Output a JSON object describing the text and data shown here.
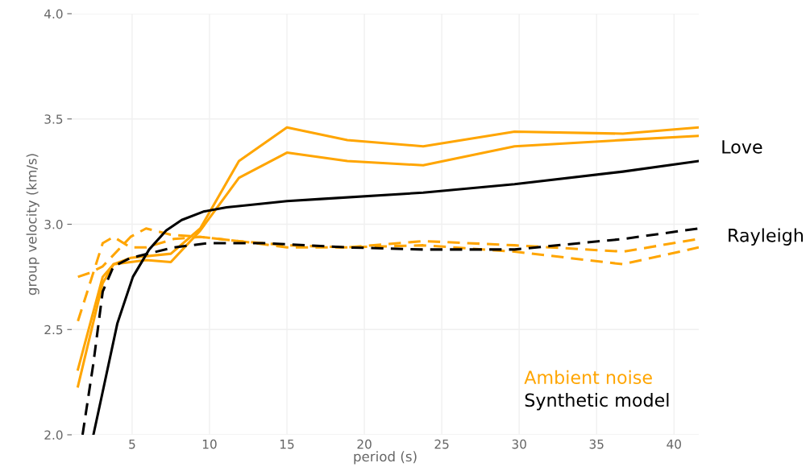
{
  "chart_data": {
    "type": "line",
    "xlabel": "period (s)",
    "ylabel": "group velocity (km/s)",
    "xlim": [
      1.1,
      41.6
    ],
    "ylim": [
      2.0,
      4.0
    ],
    "xticks": [
      5,
      10,
      15,
      20,
      25,
      30,
      35,
      40
    ],
    "yticks": [
      {
        "value": 2.0,
        "label": "2.0"
      },
      {
        "value": 2.5,
        "label": "2.5"
      },
      {
        "value": 3.0,
        "label": "3.0"
      },
      {
        "value": 3.5,
        "label": "3.5"
      },
      {
        "value": 4.0,
        "label": "4.0"
      }
    ],
    "grid": true,
    "legend": "bottom right",
    "marker": "none",
    "series": [
      {
        "name": "Ambient noise",
        "color": "#ffa500",
        "line_style": "solid",
        "x": [
          1.5,
          3.1,
          3.8,
          4.9,
          7.5,
          9.4,
          11.9,
          15,
          18.9,
          23.8,
          29.7,
          36.7,
          41.6
        ],
        "values": [
          2.31,
          2.75,
          2.81,
          2.84,
          2.86,
          2.98,
          3.3,
          3.46,
          3.4,
          3.37,
          3.44,
          3.43,
          3.46
        ]
      },
      {
        "color": "#ffa500",
        "line_style": "solid",
        "x": [
          1.5,
          3.1,
          3.8,
          5.9,
          7.5,
          9.4,
          11.9,
          15,
          18.9,
          23.8,
          29.7,
          36.7,
          41.6
        ],
        "values": [
          2.23,
          2.72,
          2.81,
          2.83,
          2.82,
          2.97,
          3.22,
          3.34,
          3.3,
          3.28,
          3.37,
          3.4,
          3.42
        ]
      },
      {
        "color": "#ffa500",
        "line_style": "dashed",
        "x": [
          1.5,
          3.1,
          3.8,
          4.9,
          5.9,
          7.7,
          9.4,
          11.9,
          15,
          18.9,
          23.8,
          29.7,
          36.7,
          41.6
        ],
        "values": [
          2.54,
          2.91,
          2.94,
          2.89,
          2.89,
          2.93,
          2.94,
          2.92,
          2.9,
          2.89,
          2.92,
          2.9,
          2.87,
          2.93
        ]
      },
      {
        "color": "#ffa500",
        "line_style": "dashed",
        "x": [
          1.5,
          2.3,
          3.1,
          4.9,
          5.9,
          7.5,
          9.4,
          11.9,
          15,
          18.9,
          23.8,
          29.7,
          36.7,
          41.6
        ],
        "values": [
          2.75,
          2.77,
          2.8,
          2.94,
          2.98,
          2.95,
          2.94,
          2.92,
          2.89,
          2.89,
          2.9,
          2.87,
          2.81,
          2.89
        ]
      },
      {
        "name": "Synthetic model",
        "color": "#000000",
        "line_style": "solid",
        "x": [
          2.5,
          3.0,
          4.05,
          5.05,
          6.1,
          7.2,
          8.2,
          9.6,
          11.1,
          15,
          17.2,
          23.8,
          29.7,
          36.7,
          41.6
        ],
        "values": [
          2.0,
          2.17,
          2.53,
          2.75,
          2.88,
          2.97,
          3.02,
          3.06,
          3.08,
          3.11,
          3.12,
          3.15,
          3.19,
          3.25,
          3.3
        ]
      },
      {
        "color": "#000000",
        "line_style": "dashed",
        "x": [
          1.8,
          2.5,
          3.1,
          3.8,
          4.9,
          7.7,
          9.9,
          13.7,
          18.9,
          23.8,
          29.7,
          36.7,
          41.6
        ],
        "values": [
          2.0,
          2.34,
          2.68,
          2.8,
          2.84,
          2.89,
          2.91,
          2.91,
          2.89,
          2.88,
          2.88,
          2.93,
          2.98
        ]
      }
    ],
    "annotations": [
      "Love",
      "Rayleigh"
    ]
  }
}
